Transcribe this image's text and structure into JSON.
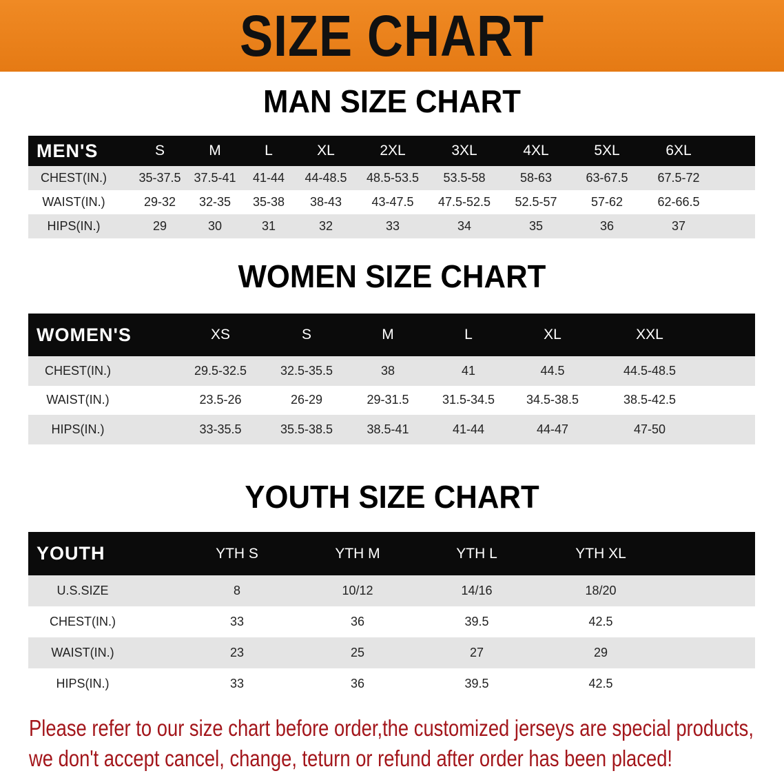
{
  "banner": {
    "title": "SIZE CHART",
    "color": "#e8821c"
  },
  "men": {
    "title": "MAN SIZE CHART",
    "header": [
      "MEN'S",
      "S",
      "M",
      "L",
      "XL",
      "2XL",
      "3XL",
      "4XL",
      "5XL",
      "6XL"
    ],
    "rows": [
      [
        "CHEST(IN.)",
        "35-37.5",
        "37.5-41",
        "41-44",
        "44-48.5",
        "48.5-53.5",
        "53.5-58",
        "58-63",
        "63-67.5",
        "67.5-72"
      ],
      [
        "WAIST(IN.)",
        "29-32",
        "32-35",
        "35-38",
        "38-43",
        "43-47.5",
        "47.5-52.5",
        "52.5-57",
        "57-62",
        "62-66.5"
      ],
      [
        "HIPS(IN.)",
        "29",
        "30",
        "31",
        "32",
        "33",
        "34",
        "35",
        "36",
        "37"
      ]
    ]
  },
  "women": {
    "title": "WOMEN SIZE CHART",
    "header": [
      "WOMEN'S",
      "XS",
      "S",
      "M",
      "L",
      "XL",
      "XXL"
    ],
    "rows": [
      [
        "CHEST(IN.)",
        "29.5-32.5",
        "32.5-35.5",
        "38",
        "41",
        "44.5",
        "44.5-48.5"
      ],
      [
        "WAIST(IN.)",
        "23.5-26",
        "26-29",
        "29-31.5",
        "31.5-34.5",
        "34.5-38.5",
        "38.5-42.5"
      ],
      [
        "HIPS(IN.)",
        "33-35.5",
        "35.5-38.5",
        "38.5-41",
        "41-44",
        "44-47",
        "47-50"
      ]
    ]
  },
  "youth": {
    "title": "YOUTH SIZE CHART",
    "header": [
      "YOUTH",
      "YTH S",
      "YTH M",
      "YTH L",
      "YTH XL"
    ],
    "rows": [
      [
        "U.S.SIZE",
        "8",
        "10/12",
        "14/16",
        "18/20"
      ],
      [
        "CHEST(IN.)",
        "33",
        "36",
        "39.5",
        "42.5"
      ],
      [
        "WAIST(IN.)",
        "23",
        "25",
        "27",
        "29"
      ],
      [
        "HIPS(IN.)",
        "33",
        "36",
        "39.5",
        "42.5"
      ]
    ]
  },
  "notice": {
    "line1": "Please refer to our size chart before order,the customized jerseys are special products,",
    "line2": "we don't accept cancel, change, teturn or refund after order has been placed!",
    "color": "#a3161b"
  }
}
